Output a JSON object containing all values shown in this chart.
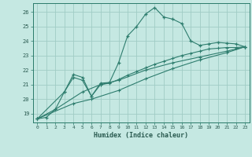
{
  "xlabel": "Humidex (Indice chaleur)",
  "bg_color": "#c5e8e2",
  "grid_color": "#a0ccc5",
  "line_color": "#2e7d6e",
  "xlim": [
    -0.5,
    23.5
  ],
  "ylim": [
    18.4,
    26.6
  ],
  "xticks": [
    0,
    1,
    2,
    3,
    4,
    5,
    6,
    7,
    8,
    9,
    10,
    11,
    12,
    13,
    14,
    15,
    16,
    17,
    18,
    19,
    20,
    21,
    22,
    23
  ],
  "yticks": [
    19,
    20,
    21,
    22,
    23,
    24,
    25,
    26
  ],
  "series1": [
    [
      0,
      18.65
    ],
    [
      1,
      18.75
    ],
    [
      2,
      19.3
    ],
    [
      3,
      20.5
    ],
    [
      4,
      21.7
    ],
    [
      5,
      21.5
    ],
    [
      6,
      20.2
    ],
    [
      7,
      21.1
    ],
    [
      8,
      21.15
    ],
    [
      9,
      22.5
    ],
    [
      10,
      24.35
    ],
    [
      11,
      25.0
    ],
    [
      12,
      25.85
    ],
    [
      13,
      26.3
    ],
    [
      14,
      25.65
    ],
    [
      15,
      25.5
    ],
    [
      16,
      25.2
    ],
    [
      17,
      24.0
    ],
    [
      18,
      23.7
    ],
    [
      19,
      23.8
    ],
    [
      20,
      23.9
    ],
    [
      21,
      23.85
    ],
    [
      22,
      23.8
    ],
    [
      23,
      23.6
    ]
  ],
  "series2": [
    [
      0,
      18.65
    ],
    [
      3,
      20.5
    ],
    [
      4,
      21.5
    ],
    [
      5,
      21.3
    ],
    [
      6,
      20.2
    ],
    [
      7,
      21.0
    ],
    [
      8,
      21.1
    ],
    [
      9,
      21.35
    ],
    [
      10,
      21.65
    ],
    [
      11,
      21.9
    ],
    [
      12,
      22.15
    ],
    [
      13,
      22.4
    ],
    [
      14,
      22.6
    ],
    [
      15,
      22.8
    ],
    [
      16,
      23.0
    ],
    [
      17,
      23.15
    ],
    [
      18,
      23.3
    ],
    [
      19,
      23.45
    ],
    [
      20,
      23.5
    ],
    [
      21,
      23.55
    ],
    [
      22,
      23.55
    ],
    [
      23,
      23.6
    ]
  ],
  "series3": [
    [
      0,
      18.65
    ],
    [
      2,
      19.3
    ],
    [
      5,
      20.5
    ],
    [
      7,
      21.0
    ],
    [
      9,
      21.3
    ],
    [
      12,
      22.0
    ],
    [
      15,
      22.5
    ],
    [
      18,
      22.9
    ],
    [
      21,
      23.3
    ],
    [
      23,
      23.6
    ]
  ],
  "series4": [
    [
      0,
      18.65
    ],
    [
      4,
      19.7
    ],
    [
      6,
      20.0
    ],
    [
      9,
      20.6
    ],
    [
      12,
      21.4
    ],
    [
      15,
      22.1
    ],
    [
      18,
      22.7
    ],
    [
      21,
      23.2
    ],
    [
      23,
      23.6
    ]
  ]
}
